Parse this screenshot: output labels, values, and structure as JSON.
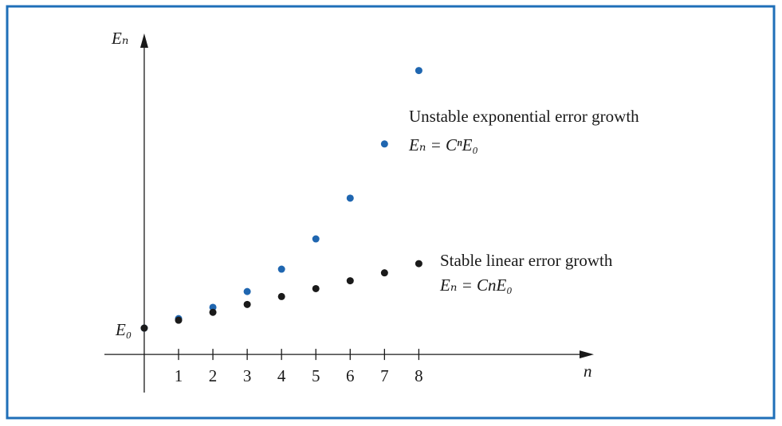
{
  "chart_data": {
    "type": "scatter",
    "x_label": "n",
    "y_label": "Eₙ",
    "origin_label": "E₀",
    "x": [
      0,
      1,
      2,
      3,
      4,
      5,
      6,
      7,
      8
    ],
    "series": [
      {
        "name": "Unstable exponential error growth",
        "formula": "Eₙ = CⁿE₀",
        "color": "#1f66b0",
        "values": [
          1,
          1.36,
          1.79,
          2.39,
          3.24,
          4.39,
          5.94,
          8.0,
          10.79
        ]
      },
      {
        "name": "Stable linear error growth",
        "formula": "Eₙ = CnE₀",
        "color": "#1a1a1a",
        "values": [
          1,
          1.3,
          1.6,
          1.9,
          2.2,
          2.5,
          2.8,
          3.1,
          3.45
        ]
      }
    ],
    "xlim": [
      -1.16,
      13.1
    ],
    "ylim": [
      -1.45,
      12.2
    ],
    "xticks": [
      1,
      2,
      3,
      4,
      5,
      6,
      7,
      8
    ],
    "grid": false
  }
}
